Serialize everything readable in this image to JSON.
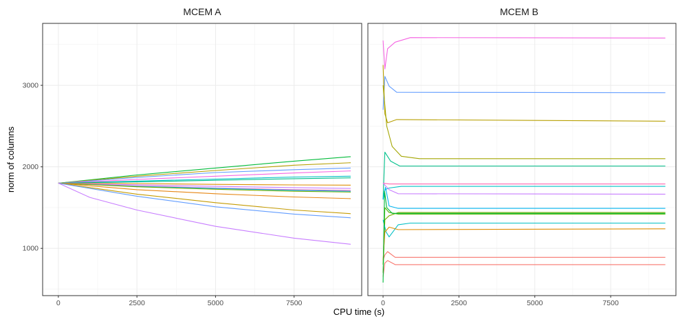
{
  "chart_data": {
    "type": "line",
    "xlabel": "CPU time (s)",
    "ylabel": "norm of columns",
    "xlim": [
      -500,
      9650
    ],
    "ylim": [
      420,
      3760
    ],
    "x_ticks": [
      0,
      2500,
      5000,
      7500
    ],
    "y_ticks": [
      1000,
      2000,
      3000
    ],
    "x_tick_labels": [
      "0",
      "2500",
      "5000",
      "7500"
    ],
    "y_tick_labels": [
      "1000",
      "2000",
      "3000"
    ],
    "grid": true,
    "legend": "none",
    "panels": [
      {
        "title": "MCEM A",
        "series": [
          {
            "color": "#00BA38",
            "points": [
              [
                0,
                1800
              ],
              [
                2500,
                1900
              ],
              [
                5000,
                1985
              ],
              [
                7500,
                2070
              ],
              [
                9300,
                2125
              ]
            ]
          },
          {
            "color": "#B79F00",
            "points": [
              [
                0,
                1800
              ],
              [
                2500,
                1885
              ],
              [
                5000,
                1955
              ],
              [
                7500,
                2020
              ],
              [
                9300,
                2050
              ]
            ]
          },
          {
            "color": "#619CFF",
            "points": [
              [
                0,
                1800
              ],
              [
                2500,
                1870
              ],
              [
                5000,
                1930
              ],
              [
                7500,
                1965
              ],
              [
                9300,
                1985
              ]
            ]
          },
          {
            "color": "#F564E3",
            "points": [
              [
                0,
                1800
              ],
              [
                2500,
                1845
              ],
              [
                5000,
                1885
              ],
              [
                7500,
                1925
              ],
              [
                9300,
                1950
              ]
            ]
          },
          {
            "color": "#00BFC4",
            "points": [
              [
                0,
                1800
              ],
              [
                2500,
                1825
              ],
              [
                5000,
                1850
              ],
              [
                7500,
                1875
              ],
              [
                9300,
                1885
              ]
            ]
          },
          {
            "color": "#00C08B",
            "points": [
              [
                0,
                1800
              ],
              [
                2500,
                1815
              ],
              [
                5000,
                1835
              ],
              [
                7500,
                1855
              ],
              [
                9300,
                1865
              ]
            ]
          },
          {
            "color": "#DE8C00",
            "points": [
              [
                0,
                1800
              ],
              [
                2500,
                1795
              ],
              [
                5000,
                1785
              ],
              [
                7500,
                1778
              ],
              [
                9300,
                1775
              ]
            ]
          },
          {
            "color": "#C77CFF",
            "points": [
              [
                0,
                1800
              ],
              [
                2500,
                1780
              ],
              [
                5000,
                1760
              ],
              [
                7500,
                1745
              ],
              [
                9300,
                1735
              ]
            ]
          },
          {
            "color": "#FF64B0",
            "points": [
              [
                0,
                1800
              ],
              [
                2500,
                1765
              ],
              [
                5000,
                1740
              ],
              [
                7500,
                1720
              ],
              [
                9300,
                1710
              ]
            ]
          },
          {
            "color": "#00B4F0",
            "points": [
              [
                0,
                1800
              ],
              [
                2500,
                1760
              ],
              [
                5000,
                1735
              ],
              [
                7500,
                1712
              ],
              [
                9300,
                1700
              ]
            ]
          },
          {
            "color": "#7CAE00",
            "points": [
              [
                0,
                1800
              ],
              [
                2500,
                1755
              ],
              [
                5000,
                1725
              ],
              [
                7500,
                1700
              ],
              [
                9300,
                1690
              ]
            ]
          },
          {
            "color": "#E68613",
            "points": [
              [
                0,
                1800
              ],
              [
                2500,
                1720
              ],
              [
                5000,
                1670
              ],
              [
                7500,
                1630
              ],
              [
                9300,
                1610
              ]
            ]
          },
          {
            "color": "#C49A00",
            "points": [
              [
                0,
                1800
              ],
              [
                2500,
                1665
              ],
              [
                5000,
                1560
              ],
              [
                7500,
                1470
              ],
              [
                9300,
                1425
              ]
            ]
          },
          {
            "color": "#619CFF",
            "points": [
              [
                0,
                1800
              ],
              [
                2500,
                1640
              ],
              [
                5000,
                1510
              ],
              [
                7500,
                1420
              ],
              [
                9300,
                1375
              ]
            ]
          },
          {
            "color": "#C77CFF",
            "points": [
              [
                0,
                1800
              ],
              [
                1000,
                1625
              ],
              [
                2500,
                1470
              ],
              [
                5000,
                1270
              ],
              [
                7500,
                1125
              ],
              [
                9300,
                1050
              ]
            ]
          }
        ]
      },
      {
        "title": "MCEM B",
        "series": [
          {
            "color": "#F564E3",
            "points": [
              [
                0,
                3550
              ],
              [
                60,
                3200
              ],
              [
                150,
                3450
              ],
              [
                400,
                3530
              ],
              [
                900,
                3585
              ],
              [
                9300,
                3580
              ]
            ]
          },
          {
            "color": "#619CFF",
            "points": [
              [
                0,
                2700
              ],
              [
                60,
                3110
              ],
              [
                200,
                2990
              ],
              [
                450,
                2915
              ],
              [
                9300,
                2910
              ]
            ]
          },
          {
            "color": "#B79F00",
            "points": [
              [
                0,
                3250
              ],
              [
                60,
                2650
              ],
              [
                150,
                2540
              ],
              [
                450,
                2580
              ],
              [
                9300,
                2560
              ]
            ]
          },
          {
            "color": "#A3A500",
            "points": [
              [
                0,
                3000
              ],
              [
                120,
                2500
              ],
              [
                300,
                2250
              ],
              [
                600,
                2130
              ],
              [
                1200,
                2100
              ],
              [
                9300,
                2100
              ]
            ]
          },
          {
            "color": "#00C08B",
            "points": [
              [
                0,
                1600
              ],
              [
                60,
                2180
              ],
              [
                250,
                2070
              ],
              [
                550,
                2010
              ],
              [
                9300,
                2010
              ]
            ]
          },
          {
            "color": "#FF64B0",
            "points": [
              [
                0,
                1800
              ],
              [
                200,
                1790
              ],
              [
                9300,
                1790
              ]
            ]
          },
          {
            "color": "#00BFC4",
            "points": [
              [
                0,
                1600
              ],
              [
                60,
                1720
              ],
              [
                200,
                1740
              ],
              [
                600,
                1760
              ],
              [
                9300,
                1760
              ]
            ]
          },
          {
            "color": "#C77CFF",
            "points": [
              [
                0,
                1800
              ],
              [
                200,
                1720
              ],
              [
                500,
                1670
              ],
              [
                9300,
                1665
              ]
            ]
          },
          {
            "color": "#00B4F0",
            "points": [
              [
                0,
                1600
              ],
              [
                80,
                1750
              ],
              [
                200,
                1520
              ],
              [
                500,
                1490
              ],
              [
                9300,
                1490
              ]
            ]
          },
          {
            "color": "#7CAE00",
            "points": [
              [
                0,
                700
              ],
              [
                60,
                1350
              ],
              [
                200,
                1400
              ],
              [
                500,
                1440
              ],
              [
                9300,
                1440
              ]
            ]
          },
          {
            "color": "#53B400",
            "points": [
              [
                0,
                800
              ],
              [
                60,
                1500
              ],
              [
                200,
                1440
              ],
              [
                500,
                1420
              ],
              [
                9300,
                1420
              ]
            ]
          },
          {
            "color": "#00BFC4",
            "points": [
              [
                0,
                1350
              ],
              [
                100,
                1200
              ],
              [
                200,
                1140
              ],
              [
                500,
                1290
              ],
              [
                900,
                1310
              ],
              [
                9300,
                1310
              ]
            ]
          },
          {
            "color": "#DE8C00",
            "points": [
              [
                0,
                850
              ],
              [
                60,
                1200
              ],
              [
                200,
                1260
              ],
              [
                500,
                1230
              ],
              [
                9300,
                1240
              ]
            ]
          },
          {
            "color": "#F8766D",
            "points": [
              [
                0,
                850
              ],
              [
                60,
                920
              ],
              [
                150,
                960
              ],
              [
                400,
                890
              ],
              [
                9300,
                890
              ]
            ]
          },
          {
            "color": "#F8766D",
            "points": [
              [
                0,
                650
              ],
              [
                60,
                820
              ],
              [
                150,
                850
              ],
              [
                400,
                800
              ],
              [
                9300,
                800
              ]
            ]
          },
          {
            "color": "#00BA38",
            "points": [
              [
                0,
                580
              ],
              [
                50,
                1700
              ],
              [
                120,
                1500
              ],
              [
                300,
                1430
              ],
              [
                9300,
                1430
              ]
            ]
          }
        ]
      }
    ]
  }
}
